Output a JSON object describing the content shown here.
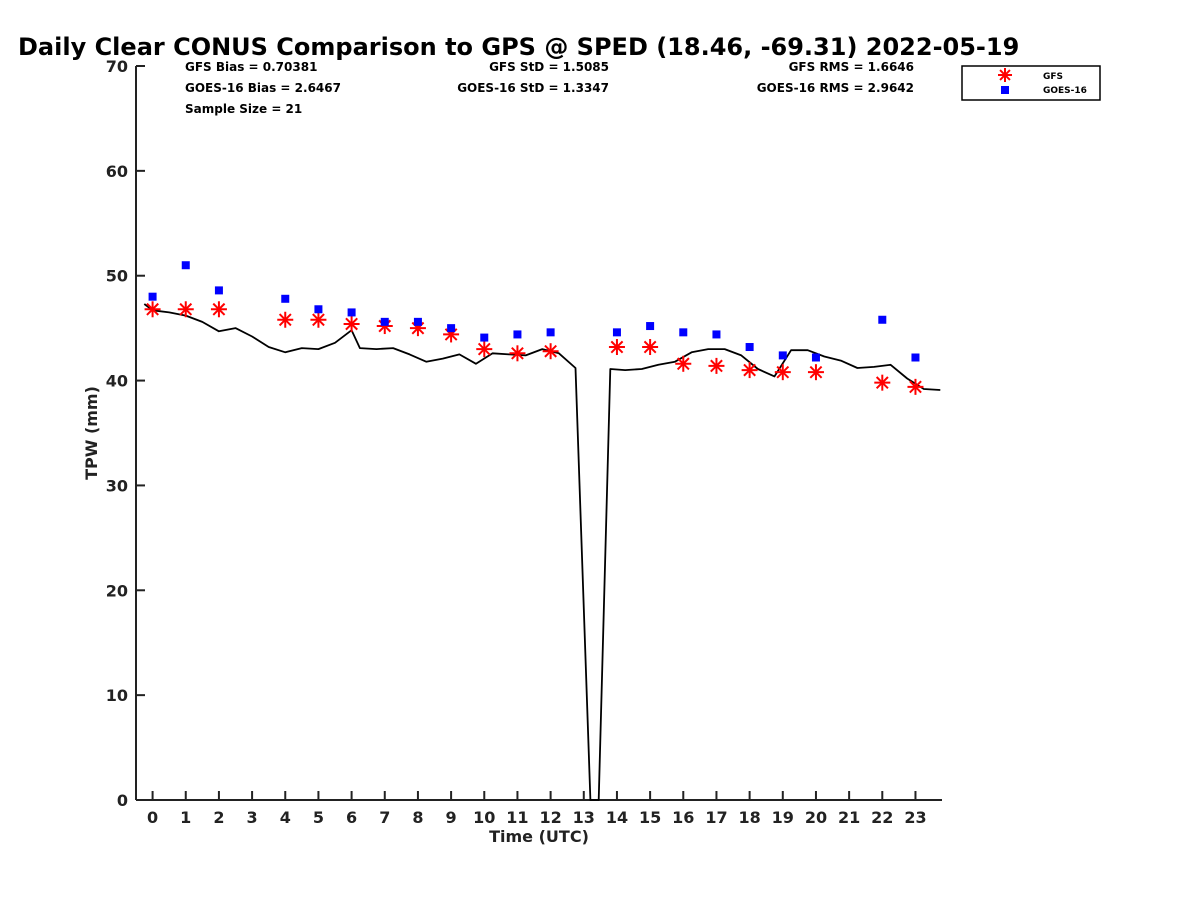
{
  "chart_data": {
    "type": "line",
    "title": "Daily Clear CONUS Comparison to GPS @ SPED (18.46, -69.31) 2022-05-19",
    "xlabel": "Time (UTC)",
    "ylabel": "TPW (mm)",
    "xlim": [
      -0.5,
      23.8
    ],
    "ylim": [
      0,
      70
    ],
    "x_ticks": [
      0,
      1,
      2,
      3,
      4,
      5,
      6,
      7,
      8,
      9,
      10,
      11,
      12,
      13,
      14,
      15,
      16,
      17,
      18,
      19,
      20,
      21,
      22,
      23
    ],
    "y_ticks": [
      0,
      10,
      20,
      30,
      40,
      50,
      60,
      70
    ],
    "stats": {
      "gfs_bias": "GFS Bias = 0.70381",
      "goes_bias": "GOES-16 Bias = 2.6467",
      "sample_size": "Sample Size = 21",
      "gfs_std": "GFS StD = 1.5085",
      "goes_std": "GOES-16 StD = 1.3347",
      "gfs_rms": "GFS RMS = 1.6646",
      "goes_rms": "GOES-16 RMS = 2.9642"
    },
    "legend": {
      "placement": "top-right outside",
      "entries": [
        "GFS",
        "GOES-16"
      ]
    },
    "series": [
      {
        "name": "GPS",
        "style": "line",
        "color": "#000000",
        "x": [
          -0.25,
          0,
          0.5,
          1,
          1.5,
          2,
          2.5,
          3,
          3.5,
          4,
          4.5,
          5,
          5.5,
          6,
          6.25,
          6.75,
          7.25,
          7.75,
          8.25,
          8.75,
          9.25,
          9.75,
          10.25,
          10.75,
          11.25,
          11.75,
          12.25,
          12.75,
          13.2,
          13.45,
          13.8,
          14.25,
          14.75,
          15.25,
          15.75,
          16.25,
          16.75,
          17.25,
          17.75,
          18.25,
          18.75,
          19.25,
          19.75,
          20.25,
          20.75,
          21.25,
          21.75,
          22.25,
          22.75,
          23.25,
          23.75
        ],
        "y": [
          47.3,
          46.7,
          46.5,
          46.2,
          45.6,
          44.7,
          45.0,
          44.2,
          43.2,
          42.7,
          43.1,
          43.0,
          43.6,
          44.8,
          43.1,
          43.0,
          43.1,
          42.5,
          41.8,
          42.1,
          42.5,
          41.6,
          42.6,
          42.5,
          42.4,
          43.0,
          42.6,
          41.2,
          0,
          0,
          41.1,
          41.0,
          41.1,
          41.5,
          41.8,
          42.7,
          43.0,
          43.0,
          42.4,
          41.1,
          40.4,
          42.9,
          42.9,
          42.3,
          41.9,
          41.2,
          41.3,
          41.5,
          40.2,
          39.2,
          39.1
        ]
      },
      {
        "name": "GFS",
        "style": "asterisk",
        "color": "#ff0000",
        "x": [
          0,
          1,
          2,
          4,
          5,
          6,
          7,
          8,
          9,
          10,
          11,
          12,
          14,
          15,
          16,
          17,
          18,
          19,
          20,
          22,
          23
        ],
        "y": [
          46.8,
          46.8,
          46.8,
          45.8,
          45.8,
          45.4,
          45.2,
          45.0,
          44.4,
          43.0,
          42.6,
          42.8,
          43.2,
          43.2,
          41.6,
          41.4,
          41.0,
          40.8,
          40.8,
          39.8,
          39.4
        ]
      },
      {
        "name": "GOES-16",
        "style": "square",
        "color": "#0000ff",
        "x": [
          0,
          1,
          2,
          4,
          5,
          6,
          7,
          8,
          9,
          10,
          11,
          12,
          14,
          15,
          16,
          17,
          18,
          19,
          20,
          22,
          23
        ],
        "y": [
          48.0,
          51.0,
          48.6,
          47.8,
          46.8,
          46.5,
          45.6,
          45.6,
          45.0,
          44.1,
          44.4,
          44.6,
          44.6,
          45.2,
          44.6,
          44.4,
          43.2,
          42.4,
          42.2,
          45.8,
          42.2
        ]
      }
    ]
  }
}
